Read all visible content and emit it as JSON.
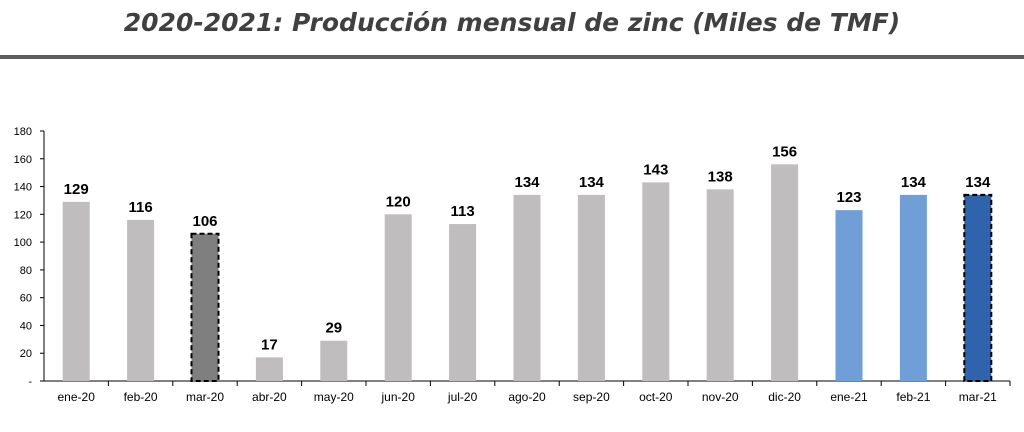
{
  "chart_data": {
    "type": "bar",
    "title": "2020-2021: Producción mensual de zinc (Miles de TMF)",
    "categories": [
      "ene-20",
      "feb-20",
      "mar-20",
      "abr-20",
      "may-20",
      "jun-20",
      "jul-20",
      "ago-20",
      "sep-20",
      "oct-20",
      "nov-20",
      "dic-20",
      "ene-21",
      "feb-21",
      "mar-21"
    ],
    "values": [
      129,
      116,
      106,
      17,
      29,
      120,
      113,
      134,
      134,
      143,
      138,
      156,
      123,
      134,
      134
    ],
    "bar_colors": [
      "#bfbdbe",
      "#bfbdbe",
      "#7f7f7f",
      "#bfbdbe",
      "#bfbdbe",
      "#bfbdbe",
      "#bfbdbe",
      "#bfbdbe",
      "#bfbdbe",
      "#bfbdbe",
      "#bfbdbe",
      "#bfbdbe",
      "#6f9fd6",
      "#6f9fd6",
      "#2f64ad"
    ],
    "dashed_outline": [
      false,
      false,
      true,
      false,
      false,
      false,
      false,
      false,
      false,
      false,
      false,
      false,
      false,
      false,
      true
    ],
    "ylim": [
      0,
      180
    ],
    "yticks": [
      0,
      20,
      40,
      60,
      80,
      100,
      120,
      140,
      160,
      180
    ],
    "ytick_labels": [
      "-",
      "20",
      "40",
      "60",
      "80",
      "100",
      "120",
      "140",
      "160",
      "180"
    ],
    "grid": false,
    "legend": "none",
    "xlabel": "",
    "ylabel": ""
  }
}
